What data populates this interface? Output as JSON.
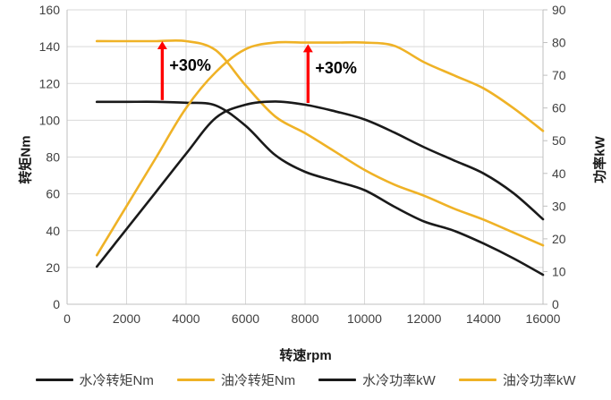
{
  "chart_data": {
    "type": "line",
    "title": "",
    "legend_position": "bottom",
    "grid": true,
    "x_axis": {
      "label": "转速rpm",
      "min": 0,
      "max": 16000,
      "tick_step": 2000
    },
    "y_left": {
      "label": "转矩Nm",
      "min": 0,
      "max": 160,
      "tick_step": 20
    },
    "y_right": {
      "label": "功率kW",
      "min": 0,
      "max": 90,
      "tick_step": 10
    },
    "x": [
      1000,
      2000,
      3000,
      4000,
      5000,
      6000,
      7000,
      8000,
      9000,
      10000,
      11000,
      12000,
      13000,
      14000,
      15000,
      16000
    ],
    "series": [
      {
        "name": "水冷转矩Nm",
        "axis": "left",
        "color": "#1a1a1a",
        "values": [
          110,
          110,
          110,
          109.5,
          108,
          97,
          81,
          72,
          67,
          62,
          53,
          45,
          40,
          33,
          25,
          16
        ]
      },
      {
        "name": "油冷转矩Nm",
        "axis": "left",
        "color": "#efb226",
        "values": [
          143,
          143,
          143,
          143,
          138,
          119,
          102,
          93,
          83,
          73,
          65,
          59,
          52,
          46,
          39,
          32
        ]
      },
      {
        "name": "水冷功率kW",
        "axis": "right",
        "color": "#1a1a1a",
        "values": [
          11.5,
          23,
          34.5,
          46,
          57,
          61,
          62,
          61,
          59,
          56.5,
          52.5,
          48,
          44,
          40,
          34,
          26
        ]
      },
      {
        "name": "油冷功率kW",
        "axis": "right",
        "color": "#efb226",
        "values": [
          15,
          30,
          45,
          60,
          71,
          78,
          80,
          80,
          80,
          80,
          79,
          74,
          70,
          66,
          60,
          53
        ]
      }
    ],
    "annotations": [
      {
        "label": "+30%",
        "x": 3200,
        "axis": "left",
        "from_value": 110,
        "to_value": 143
      },
      {
        "label": "+30%",
        "x": 8100,
        "axis": "right",
        "from_value": 61,
        "to_value": 79.5
      }
    ]
  },
  "colors": {
    "series_black": "#1a1a1a",
    "series_gold": "#efb226",
    "arrow_red": "#ff0000",
    "grid": "#d9d9d9",
    "axis_line": "#bfbfbf",
    "tick_text": "#404040"
  }
}
